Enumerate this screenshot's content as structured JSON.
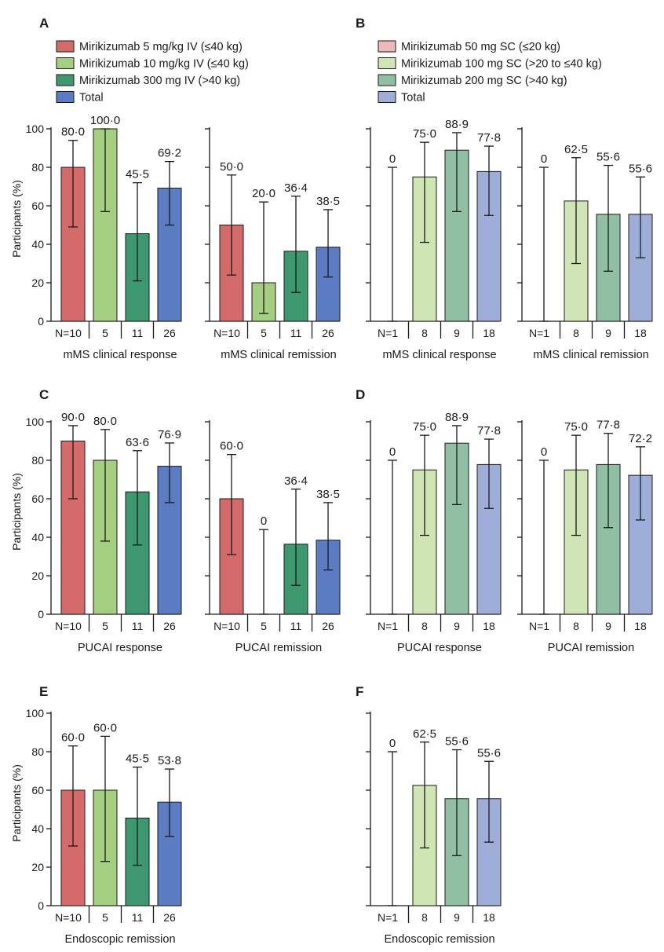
{
  "colors": {
    "iv5": "#d46a6a",
    "iv10": "#a4cf80",
    "iv300": "#3d9870",
    "ivTotal": "#5b7bc2",
    "sc50": "#ebb9b9",
    "sc100": "#d0e5b4",
    "sc200": "#90bfa3",
    "scTotal": "#9faed8"
  },
  "legends": {
    "A": [
      {
        "label": "Mirikizumab 5 mg/kg IV (≤40 kg)",
        "color_key": "iv5"
      },
      {
        "label": "Mirikizumab 10 mg/kg IV (≤40 kg)",
        "color_key": "iv10"
      },
      {
        "label": "Mirikizumab 300 mg IV (>40 kg)",
        "color_key": "iv300"
      },
      {
        "label": "Total",
        "color_key": "ivTotal"
      }
    ],
    "B": [
      {
        "label": "Mirikizumab 50 mg SC (≤20 kg)",
        "color_key": "sc50"
      },
      {
        "label": "Mirikizumab 100 mg SC (>20 to ≤40 kg)",
        "color_key": "sc100"
      },
      {
        "label": "Mirikizumab 200 mg SC (>40 kg)",
        "color_key": "sc200"
      },
      {
        "label": "Total",
        "color_key": "scTotal"
      }
    ]
  },
  "chart_data": [
    {
      "id": "A1",
      "panel": "A",
      "type": "bar",
      "ylabel": "Participants (%)",
      "xlabel": "mMS clinical response",
      "ylim": [
        0,
        100
      ],
      "yticks": [
        0,
        20,
        40,
        60,
        80,
        100
      ],
      "categories": [
        "N=10",
        "5",
        "11",
        "26"
      ],
      "values": [
        80.0,
        100.0,
        45.5,
        69.2
      ],
      "value_labels": [
        "80·0",
        "100·0",
        "45·5",
        "69·2"
      ],
      "ci_low": [
        49,
        57,
        21,
        50
      ],
      "ci_high": [
        94,
        100,
        72,
        83
      ],
      "color_keys": [
        "iv5",
        "iv10",
        "iv300",
        "ivTotal"
      ]
    },
    {
      "id": "A2",
      "panel": "A",
      "type": "bar",
      "xlabel": "mMS clinical remission",
      "ylim": [
        0,
        100
      ],
      "categories": [
        "N=10",
        "5",
        "11",
        "26"
      ],
      "values": [
        50.0,
        20.0,
        36.4,
        38.5
      ],
      "value_labels": [
        "50·0",
        "20·0",
        "36·4",
        "38·5"
      ],
      "ci_low": [
        24,
        4,
        15,
        23
      ],
      "ci_high": [
        76,
        62,
        65,
        58
      ],
      "color_keys": [
        "iv5",
        "iv10",
        "iv300",
        "ivTotal"
      ]
    },
    {
      "id": "B1",
      "panel": "B",
      "type": "bar",
      "xlabel": "mMS clinical response",
      "ylim": [
        0,
        100
      ],
      "categories": [
        "N=1",
        "8",
        "9",
        "18"
      ],
      "values": [
        0,
        75.0,
        88.9,
        77.8
      ],
      "value_labels": [
        "0",
        "75·0",
        "88·9",
        "77·8"
      ],
      "ci_low": [
        0,
        41,
        57,
        55
      ],
      "ci_high": [
        80,
        93,
        98,
        91
      ],
      "color_keys": [
        "sc50",
        "sc100",
        "sc200",
        "scTotal"
      ]
    },
    {
      "id": "B2",
      "panel": "B",
      "type": "bar",
      "xlabel": "mMS clinical remission",
      "ylim": [
        0,
        100
      ],
      "categories": [
        "N=1",
        "8",
        "9",
        "18"
      ],
      "values": [
        0,
        62.5,
        55.6,
        55.6
      ],
      "value_labels": [
        "0",
        "62·5",
        "55·6",
        "55·6"
      ],
      "ci_low": [
        0,
        30,
        26,
        33
      ],
      "ci_high": [
        80,
        85,
        81,
        75
      ],
      "color_keys": [
        "sc50",
        "sc100",
        "sc200",
        "scTotal"
      ]
    },
    {
      "id": "C1",
      "panel": "C",
      "type": "bar",
      "ylabel": "Participants (%)",
      "xlabel": "PUCAI  response",
      "ylim": [
        0,
        100
      ],
      "yticks": [
        0,
        20,
        40,
        60,
        80,
        100
      ],
      "categories": [
        "N=10",
        "5",
        "11",
        "26"
      ],
      "values": [
        90.0,
        80.0,
        63.6,
        76.9
      ],
      "value_labels": [
        "90·0",
        "80·0",
        "63·6",
        "76·9"
      ],
      "ci_low": [
        60,
        38,
        36,
        58
      ],
      "ci_high": [
        98,
        96,
        85,
        89
      ],
      "color_keys": [
        "iv5",
        "iv10",
        "iv300",
        "ivTotal"
      ]
    },
    {
      "id": "C2",
      "panel": "C",
      "type": "bar",
      "xlabel": "PUCAI  remission",
      "ylim": [
        0,
        100
      ],
      "categories": [
        "N=10",
        "5",
        "11",
        "26"
      ],
      "values": [
        60.0,
        0,
        36.4,
        38.5
      ],
      "value_labels": [
        "60·0",
        "0",
        "36·4",
        "38·5"
      ],
      "ci_low": [
        31,
        0,
        15,
        23
      ],
      "ci_high": [
        83,
        44,
        65,
        58
      ],
      "color_keys": [
        "iv5",
        "iv10",
        "iv300",
        "ivTotal"
      ]
    },
    {
      "id": "D1",
      "panel": "D",
      "type": "bar",
      "xlabel": "PUCAI response",
      "ylim": [
        0,
        100
      ],
      "categories": [
        "N=1",
        "8",
        "9",
        "18"
      ],
      "values": [
        0,
        75.0,
        88.9,
        77.8
      ],
      "value_labels": [
        "0",
        "75·0",
        "88·9",
        "77·8"
      ],
      "ci_low": [
        0,
        41,
        57,
        55
      ],
      "ci_high": [
        80,
        93,
        98,
        91
      ],
      "color_keys": [
        "sc50",
        "sc100",
        "sc200",
        "scTotal"
      ]
    },
    {
      "id": "D2",
      "panel": "D",
      "type": "bar",
      "xlabel": "PUCAI  remission",
      "ylim": [
        0,
        100
      ],
      "categories": [
        "N=1",
        "8",
        "9",
        "18"
      ],
      "values": [
        0,
        75.0,
        77.8,
        72.2
      ],
      "value_labels": [
        "0",
        "75·0",
        "77·8",
        "72·2"
      ],
      "ci_low": [
        0,
        41,
        45,
        49
      ],
      "ci_high": [
        80,
        93,
        94,
        87
      ],
      "color_keys": [
        "sc50",
        "sc100",
        "sc200",
        "scTotal"
      ]
    },
    {
      "id": "E1",
      "panel": "E",
      "type": "bar",
      "ylabel": "Participants (%)",
      "xlabel": "Endoscopic remission",
      "ylim": [
        0,
        100
      ],
      "yticks": [
        0,
        20,
        40,
        60,
        80,
        100
      ],
      "categories": [
        "N=10",
        "5",
        "11",
        "26"
      ],
      "values": [
        60.0,
        60.0,
        45.5,
        53.8
      ],
      "value_labels": [
        "60·0",
        "60·0",
        "45·5",
        "53·8"
      ],
      "ci_low": [
        31,
        23,
        21,
        36
      ],
      "ci_high": [
        83,
        88,
        72,
        71
      ],
      "color_keys": [
        "iv5",
        "iv10",
        "iv300",
        "ivTotal"
      ]
    },
    {
      "id": "F1",
      "panel": "F",
      "type": "bar",
      "xlabel": "Endoscopic remission",
      "ylim": [
        0,
        100
      ],
      "categories": [
        "N=1",
        "8",
        "9",
        "18"
      ],
      "values": [
        0,
        62.5,
        55.6,
        55.6
      ],
      "value_labels": [
        "0",
        "62·5",
        "55·6",
        "55·6"
      ],
      "ci_low": [
        0,
        30,
        26,
        33
      ],
      "ci_high": [
        80,
        85,
        81,
        75
      ],
      "color_keys": [
        "sc50",
        "sc100",
        "sc200",
        "scTotal"
      ]
    }
  ]
}
